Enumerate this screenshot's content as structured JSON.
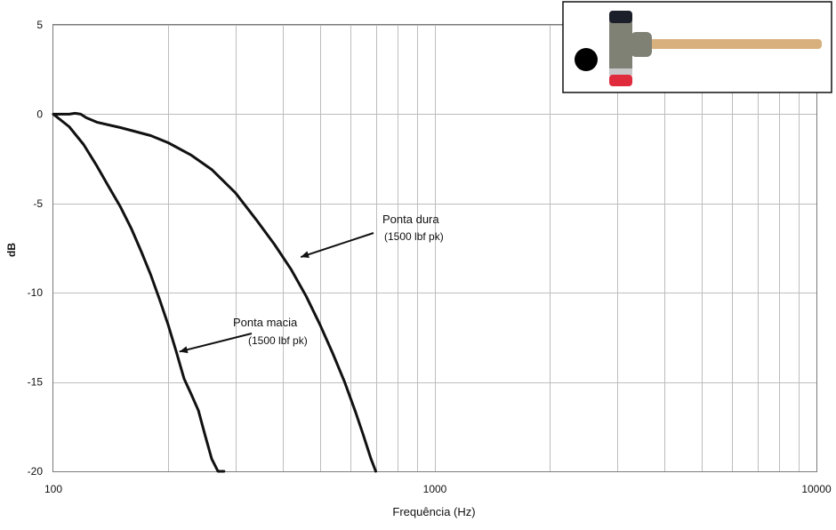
{
  "chart_data": {
    "type": "line",
    "xscale": "log",
    "xlim": [
      100,
      10000
    ],
    "ylim": [
      -20,
      5
    ],
    "grid": true,
    "title": "",
    "xlabel": "Frequência (Hz)",
    "ylabel": "dB",
    "xticks": [
      {
        "value": 100,
        "label": "100"
      },
      {
        "value": 1000,
        "label": "1000"
      },
      {
        "value": 10000,
        "label": "10000"
      }
    ],
    "yticks": [
      {
        "value": 5,
        "label": "5"
      },
      {
        "value": 0,
        "label": "0"
      },
      {
        "value": -5,
        "label": "-5"
      },
      {
        "value": -10,
        "label": "-10"
      },
      {
        "value": -15,
        "label": "-15"
      },
      {
        "value": -20,
        "label": "-20"
      }
    ],
    "series": [
      {
        "name": "Ponta dura",
        "x": [
          100,
          110,
          114,
          118,
          122,
          130,
          150,
          180,
          200,
          230,
          260,
          300,
          340,
          380,
          420,
          460,
          500,
          540,
          580,
          620,
          650,
          680,
          700
        ],
        "y": [
          0,
          0,
          0.05,
          0,
          -0.2,
          -0.45,
          -0.75,
          -1.2,
          -1.6,
          -2.3,
          -3.1,
          -4.4,
          -5.9,
          -7.3,
          -8.7,
          -10.2,
          -11.8,
          -13.4,
          -15.0,
          -16.7,
          -18.0,
          -19.3,
          -20
        ]
      },
      {
        "name": "Ponta macia",
        "x": [
          100,
          110,
          120,
          130,
          140,
          150,
          160,
          170,
          180,
          190,
          200,
          210,
          220,
          230,
          240,
          250,
          260,
          270,
          280
        ],
        "y": [
          0,
          -0.7,
          -1.7,
          -2.9,
          -4.1,
          -5.2,
          -6.4,
          -7.7,
          -9.0,
          -10.4,
          -11.8,
          -13.3,
          -14.8,
          -15.7,
          -16.6,
          -18.0,
          -19.3,
          -20,
          -20
        ]
      }
    ],
    "annotations": [
      {
        "title": "Ponta dura",
        "subtitle": "(1500 lbf pk)",
        "target_x": 445,
        "target_y": -8.0
      },
      {
        "title": "Ponta macia",
        "subtitle": "(1500 lbf pk)",
        "target_x": 214,
        "target_y": -13.3
      }
    ]
  },
  "inset": {
    "icon": "hammer-icon",
    "colors": {
      "handle": "#d8b07e",
      "head": "#7f8175",
      "hard_tip": "#1b1f2a",
      "soft_tip": "#e02b3d",
      "ring": "#c8c8c8",
      "dot": "#000000"
    }
  }
}
